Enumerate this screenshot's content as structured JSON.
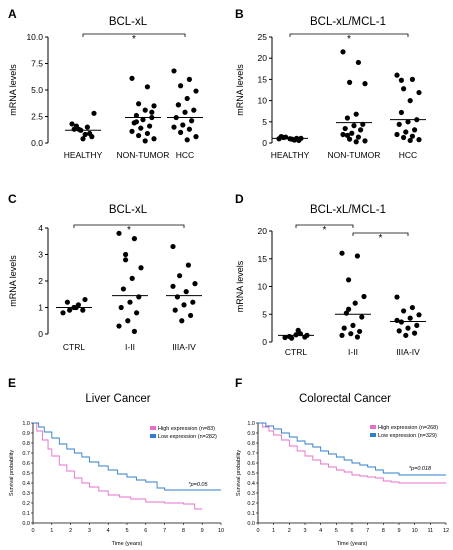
{
  "chart_data": [
    {
      "panel": "A",
      "type": "scatter",
      "title": "BCL-xL",
      "ylabel": "mRNA levels",
      "ylim": [
        0,
        10
      ],
      "yticks": [
        "0.0",
        "2.5",
        "5.0",
        "7.5",
        "10.0"
      ],
      "categories": [
        "HEALTHY",
        "NON-TUMOR",
        "HCC"
      ],
      "points": [
        [
          1.8,
          1.5,
          1.3,
          2.8,
          0.8,
          1.6,
          0.6,
          0.4,
          1.3,
          0.9,
          1.2
        ],
        [
          6.1,
          5.3,
          3.7,
          3.5,
          3.1,
          2.6,
          2.4,
          2.2,
          1.9,
          1.6,
          1.4,
          1.1,
          0.9,
          0.7,
          0.4,
          0.2,
          2.0,
          2.9
        ],
        [
          6.8,
          6.0,
          5.4,
          4.9,
          4.2,
          3.6,
          3.1,
          2.9,
          2.4,
          2.1,
          1.7,
          1.5,
          1.3,
          1.0,
          0.6,
          0.3,
          3.6
        ]
      ],
      "means": [
        1.2,
        2.4,
        2.4
      ],
      "significance": [
        {
          "from": 0,
          "to": 2,
          "label": "*"
        }
      ]
    },
    {
      "panel": "B",
      "type": "scatter",
      "title": "BCL-xL/MCL-1",
      "ylabel": "mRNA levels",
      "ylim": [
        0,
        25
      ],
      "yticks": [
        "0",
        "5",
        "10",
        "15",
        "20",
        "25"
      ],
      "categories": [
        "HEALTHY",
        "NON-TUMOR",
        "HCC"
      ],
      "points": [
        [
          1.0,
          0.7,
          1.4,
          1.1,
          0.9,
          1.3,
          0.6,
          1.0,
          1.5,
          1.1
        ],
        [
          21.5,
          19.0,
          14.3,
          14.0,
          6.8,
          5.9,
          4.4,
          4.1,
          3.4,
          3.1,
          2.3,
          2.0,
          1.4,
          0.9,
          0.5,
          0.3,
          1.8
        ],
        [
          16.0,
          15.0,
          12.8,
          11.9,
          10.0,
          7.2,
          5.5,
          5.0,
          4.4,
          3.1,
          2.6,
          2.0,
          1.6,
          1.3,
          0.8,
          0.6,
          14.8
        ]
      ],
      "means": [
        1.1,
        4.8,
        5.5
      ],
      "significance": [
        {
          "from": 0,
          "to": 2,
          "label": "*"
        }
      ]
    },
    {
      "panel": "C",
      "type": "scatter",
      "title": "BCL-xL",
      "ylabel": "mRNA levels",
      "ylim": [
        0,
        4
      ],
      "yticks": [
        "0",
        "1",
        "2",
        "3",
        "4"
      ],
      "categories": [
        "CTRL",
        "I-II",
        "IIIA-IV"
      ],
      "points": [
        [
          0.8,
          1.1,
          0.9,
          1.3,
          1.0,
          1.2,
          0.9,
          1.0
        ],
        [
          3.8,
          3.6,
          3.0,
          2.5,
          2.1,
          1.7,
          1.4,
          1.2,
          1.0,
          0.8,
          0.5,
          0.3,
          0.1,
          2.8
        ],
        [
          3.3,
          2.6,
          2.2,
          1.9,
          1.6,
          1.4,
          1.2,
          1.1,
          0.9,
          0.7,
          0.5,
          1.8
        ]
      ],
      "means": [
        1.0,
        1.45,
        1.45
      ],
      "significance": [
        {
          "from": 0,
          "to": 2,
          "label": "*"
        }
      ]
    },
    {
      "panel": "D",
      "type": "scatter",
      "title": "BCL-xL/MCL-1",
      "ylabel": "mRNA levels",
      "ylim": [
        0,
        20
      ],
      "yticks": [
        "0",
        "5",
        "10",
        "15",
        "20"
      ],
      "categories": [
        "CTRL",
        "I-II",
        "IIIA-IV"
      ],
      "points": [
        [
          0.8,
          1.5,
          0.7,
          1.2,
          2.1,
          1.0,
          0.9,
          1.3
        ],
        [
          16.0,
          15.5,
          11.2,
          8.2,
          7.0,
          5.2,
          4.5,
          3.0,
          2.5,
          1.9,
          1.5,
          1.2,
          0.9,
          5.9
        ],
        [
          8.1,
          6.2,
          5.6,
          4.9,
          4.3,
          3.6,
          3.0,
          2.5,
          2.0,
          1.6,
          1.2,
          3.9
        ]
      ],
      "means": [
        1.2,
        5.0,
        3.7
      ],
      "significance": [
        {
          "from": 0,
          "to": 1,
          "label": "*"
        },
        {
          "from": 1,
          "to": 2,
          "label": "*"
        }
      ]
    },
    {
      "panel": "E",
      "type": "line",
      "title": "Liver Cancer",
      "xlabel": "Time (years)",
      "ylabel": "Survival probability",
      "xlim": [
        0,
        10
      ],
      "ylim": [
        0,
        1
      ],
      "xticks": [
        "0",
        "1",
        "2",
        "3",
        "4",
        "5",
        "6",
        "7",
        "8",
        "9",
        "10"
      ],
      "yticks": [
        "0.0",
        "0.1",
        "0.2",
        "0.3",
        "0.4",
        "0.5",
        "0.6",
        "0.7",
        "0.8",
        "0.9",
        "1.0"
      ],
      "annotation": "*p=0.05",
      "series": [
        {
          "name": "High expression (n=83)",
          "color": "#e66fc8",
          "x": [
            0,
            0.2,
            0.5,
            0.8,
            1.0,
            1.4,
            1.8,
            2.2,
            2.6,
            3.0,
            3.5,
            4.0,
            4.6,
            5.2,
            6.0,
            7.0,
            8.0,
            8.6,
            9.0
          ],
          "y": [
            1.0,
            0.92,
            0.83,
            0.74,
            0.67,
            0.58,
            0.52,
            0.45,
            0.4,
            0.36,
            0.32,
            0.28,
            0.26,
            0.24,
            0.21,
            0.2,
            0.19,
            0.14,
            0.14
          ]
        },
        {
          "name": "Low expression (n=282)",
          "color": "#2f7ec9",
          "x": [
            0,
            0.3,
            0.6,
            1.0,
            1.4,
            1.8,
            2.2,
            2.6,
            3.0,
            3.5,
            4.0,
            4.5,
            5.0,
            5.5,
            6.0,
            6.6,
            7.0,
            10.0
          ],
          "y": [
            1.0,
            0.96,
            0.91,
            0.85,
            0.79,
            0.74,
            0.7,
            0.66,
            0.61,
            0.57,
            0.53,
            0.49,
            0.46,
            0.43,
            0.41,
            0.35,
            0.33,
            0.33
          ]
        }
      ]
    },
    {
      "panel": "F",
      "type": "line",
      "title": "Colorectal Cancer",
      "xlabel": "Time (years)",
      "ylabel": "Survival probability",
      "xlim": [
        0,
        12
      ],
      "ylim": [
        0,
        1
      ],
      "xticks": [
        "0",
        "1",
        "2",
        "3",
        "4",
        "5",
        "6",
        "7",
        "8",
        "9",
        "10",
        "11",
        "12"
      ],
      "yticks": [
        "0.0",
        "0.1",
        "0.2",
        "0.3",
        "0.4",
        "0.5",
        "0.6",
        "0.7",
        "0.8",
        "0.9",
        "1.0"
      ],
      "annotation": "*p=0.018",
      "series": [
        {
          "name": "High expression (n=268)",
          "color": "#e66fc8",
          "x": [
            0,
            0.3,
            0.7,
            1.0,
            1.5,
            2.0,
            2.5,
            3.0,
            3.5,
            4.0,
            4.5,
            5.0,
            5.5,
            6.0,
            6.5,
            7.0,
            7.5,
            8.0,
            8.5,
            9.0,
            12.0
          ],
          "y": [
            1.0,
            0.96,
            0.92,
            0.88,
            0.83,
            0.77,
            0.72,
            0.67,
            0.63,
            0.59,
            0.56,
            0.53,
            0.51,
            0.48,
            0.47,
            0.46,
            0.45,
            0.42,
            0.41,
            0.4,
            0.4
          ]
        },
        {
          "name": "Low expression (n=329)",
          "color": "#2f7ec9",
          "x": [
            0,
            0.5,
            1.0,
            1.5,
            2.0,
            2.5,
            3.0,
            3.5,
            4.0,
            4.5,
            5.0,
            5.5,
            6.0,
            6.5,
            7.0,
            7.5,
            8.0,
            9.0,
            12.0
          ],
          "y": [
            1.0,
            0.97,
            0.94,
            0.9,
            0.86,
            0.82,
            0.79,
            0.76,
            0.72,
            0.69,
            0.66,
            0.63,
            0.6,
            0.58,
            0.56,
            0.53,
            0.5,
            0.48,
            0.48
          ]
        }
      ]
    }
  ]
}
